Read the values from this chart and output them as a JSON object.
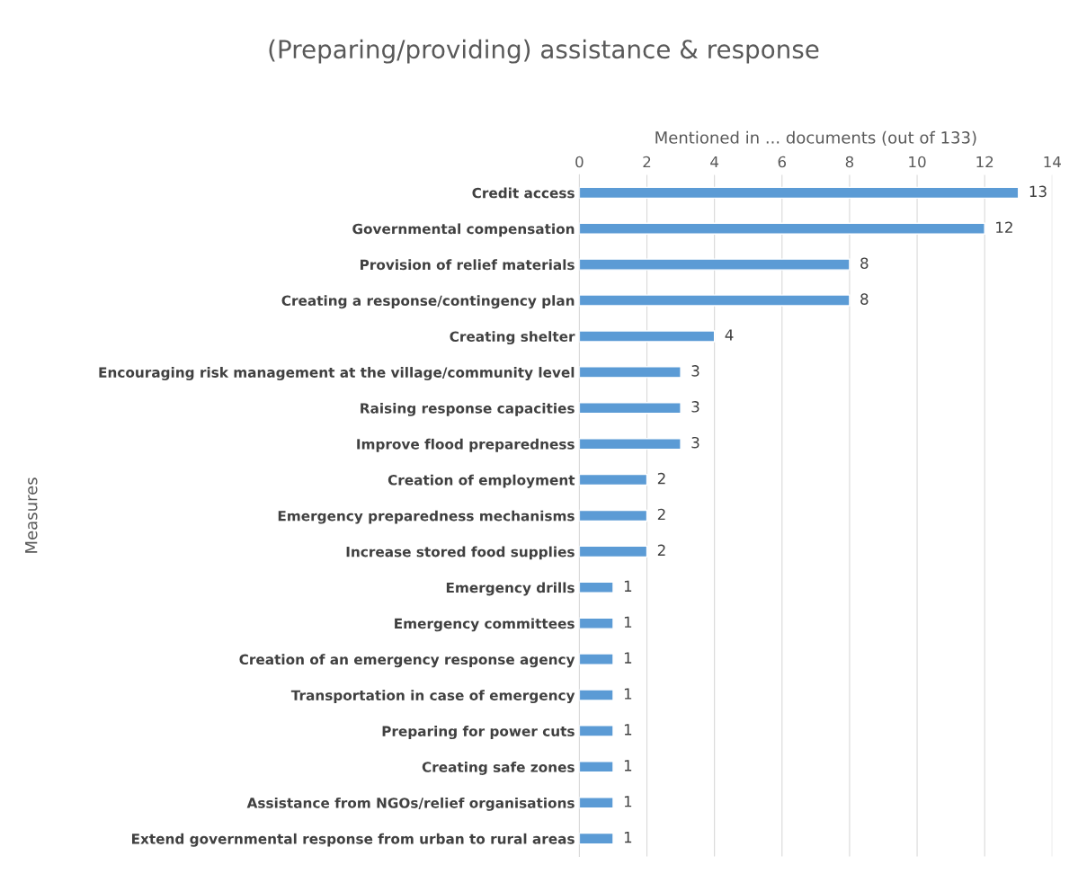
{
  "chart_data": {
    "type": "bar",
    "orientation": "horizontal",
    "title": "(Preparing/providing) assistance & response",
    "xlabel": "Mentioned in ... documents (out of 133)",
    "ylabel": "Measures",
    "categories": [
      "Credit access",
      "Governmental compensation",
      "Provision of relief materials",
      "Creating a response/contingency plan",
      "Creating shelter",
      "Encouraging risk management at the village/community level",
      "Raising response capacities",
      "Improve flood preparedness",
      "Creation of employment",
      "Emergency preparedness mechanisms",
      "Increase stored food supplies",
      "Emergency drills",
      "Emergency committees",
      "Creation of an emergency response agency",
      "Transportation in case of emergency",
      "Preparing for power cuts",
      "Creating safe zones",
      "Assistance from NGOs/relief organisations",
      "Extend governmental response from urban to rural areas"
    ],
    "values": [
      13,
      12,
      8,
      8,
      4,
      3,
      3,
      3,
      2,
      2,
      2,
      1,
      1,
      1,
      1,
      1,
      1,
      1,
      1
    ],
    "color": "#5b9bd5",
    "xlim": [
      0,
      14
    ],
    "xticks": [
      0,
      2,
      4,
      6,
      8,
      10,
      12,
      14
    ],
    "grid": "x",
    "data_labels": true,
    "legend": false
  }
}
